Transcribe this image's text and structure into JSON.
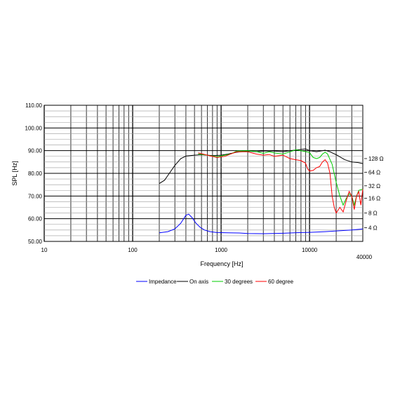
{
  "chart_data": {
    "type": "line",
    "xlabel": "Frequency [Hz]",
    "ylabel": "SPL [Hz]",
    "x_scale": "log",
    "xlim": [
      10,
      40000
    ],
    "ylim": [
      50,
      110
    ],
    "grid": true,
    "legend_position": "bottom",
    "x_tick_labels": [
      "10",
      "100",
      "1000",
      "10000",
      "40000"
    ],
    "x_ticks": [
      10,
      100,
      1000,
      10000,
      40000
    ],
    "y_ticks": [
      50,
      60,
      70,
      80,
      90,
      100,
      110
    ],
    "y_tick_labels": [
      "50.00",
      "60.00",
      "70.00",
      "80.00",
      "90.00",
      "100.00",
      "110.00"
    ],
    "impedance_axis": {
      "labels": [
        "128 Ω",
        "64 Ω",
        "32 Ω",
        "16 Ω",
        "8 Ω",
        "4 Ω"
      ],
      "spl_positions": [
        86.5,
        80.5,
        74.5,
        69.0,
        62.5,
        56.0
      ]
    },
    "series": [
      {
        "name": "Impedance",
        "color": "#0000ff",
        "points": [
          [
            200,
            53.8
          ],
          [
            250,
            54.3
          ],
          [
            300,
            55.5
          ],
          [
            350,
            58.0
          ],
          [
            400,
            61.5
          ],
          [
            430,
            62.0
          ],
          [
            470,
            60.5
          ],
          [
            520,
            58.0
          ],
          [
            580,
            56.2
          ],
          [
            650,
            55.0
          ],
          [
            750,
            54.3
          ],
          [
            900,
            53.9
          ],
          [
            1200,
            53.8
          ],
          [
            1600,
            53.7
          ],
          [
            2000,
            53.5
          ],
          [
            3000,
            53.4
          ],
          [
            5000,
            53.6
          ],
          [
            8000,
            53.9
          ],
          [
            10000,
            54.0
          ],
          [
            15000,
            54.3
          ],
          [
            20000,
            54.6
          ],
          [
            30000,
            55.0
          ],
          [
            40000,
            55.5
          ]
        ]
      },
      {
        "name": "On axis",
        "color": "#000000",
        "points": [
          [
            200,
            75.5
          ],
          [
            230,
            77.0
          ],
          [
            260,
            80.0
          ],
          [
            300,
            83.5
          ],
          [
            350,
            86.5
          ],
          [
            400,
            87.6
          ],
          [
            500,
            88.0
          ],
          [
            600,
            88.2
          ],
          [
            700,
            88.0
          ],
          [
            800,
            87.8
          ],
          [
            1000,
            88.0
          ],
          [
            1200,
            88.5
          ],
          [
            1500,
            89.3
          ],
          [
            2000,
            89.8
          ],
          [
            2500,
            89.5
          ],
          [
            3000,
            89.8
          ],
          [
            4000,
            89.8
          ],
          [
            5000,
            89.5
          ],
          [
            6000,
            90.0
          ],
          [
            7000,
            90.3
          ],
          [
            8000,
            90.5
          ],
          [
            9000,
            90.8
          ],
          [
            10000,
            90.0
          ],
          [
            12000,
            89.5
          ],
          [
            15000,
            90.2
          ],
          [
            17000,
            89.5
          ],
          [
            20000,
            88.2
          ],
          [
            25000,
            86.0
          ],
          [
            30000,
            85.0
          ],
          [
            35000,
            84.8
          ],
          [
            40000,
            84.3
          ]
        ]
      },
      {
        "name": "30 degrees",
        "color": "#00cc00",
        "points": [
          [
            550,
            88.5
          ],
          [
            700,
            88.0
          ],
          [
            900,
            87.3
          ],
          [
            1100,
            88.0
          ],
          [
            1300,
            88.6
          ],
          [
            1500,
            89.8
          ],
          [
            2000,
            90.0
          ],
          [
            2500,
            89.6
          ],
          [
            3000,
            88.8
          ],
          [
            3500,
            89.5
          ],
          [
            4000,
            89.0
          ],
          [
            5000,
            88.5
          ],
          [
            6000,
            89.5
          ],
          [
            7000,
            90.4
          ],
          [
            8000,
            90.0
          ],
          [
            9000,
            89.6
          ],
          [
            10000,
            89.2
          ],
          [
            11000,
            87.0
          ],
          [
            12000,
            86.5
          ],
          [
            13000,
            87.0
          ],
          [
            14000,
            88.5
          ],
          [
            15000,
            89.3
          ],
          [
            16000,
            88.5
          ],
          [
            18000,
            84.0
          ],
          [
            20000,
            76.0
          ],
          [
            22000,
            70.0
          ],
          [
            24000,
            66.0
          ],
          [
            26000,
            69.0
          ],
          [
            28000,
            71.0
          ],
          [
            30000,
            70.0
          ],
          [
            32000,
            66.0
          ],
          [
            34000,
            70.0
          ],
          [
            36000,
            72.5
          ],
          [
            40000,
            73.0
          ]
        ]
      },
      {
        "name": "60 degree",
        "color": "#ff0000",
        "points": [
          [
            550,
            89.0
          ],
          [
            700,
            88.0
          ],
          [
            900,
            87.0
          ],
          [
            1100,
            87.5
          ],
          [
            1300,
            88.6
          ],
          [
            1500,
            89.5
          ],
          [
            2000,
            89.5
          ],
          [
            2500,
            88.5
          ],
          [
            3000,
            88.0
          ],
          [
            3500,
            88.3
          ],
          [
            4000,
            87.5
          ],
          [
            5000,
            88.0
          ],
          [
            6000,
            86.5
          ],
          [
            7000,
            86.0
          ],
          [
            8000,
            85.6
          ],
          [
            9000,
            84.5
          ],
          [
            9500,
            82.0
          ],
          [
            10000,
            81.0
          ],
          [
            11000,
            81.3
          ],
          [
            12000,
            82.5
          ],
          [
            13000,
            83.0
          ],
          [
            14000,
            85.0
          ],
          [
            15000,
            86.0
          ],
          [
            16000,
            84.5
          ],
          [
            17000,
            80.0
          ],
          [
            18000,
            70.0
          ],
          [
            19000,
            65.0
          ],
          [
            20000,
            62.5
          ],
          [
            22000,
            65.0
          ],
          [
            24000,
            63.0
          ],
          [
            26000,
            68.0
          ],
          [
            28000,
            72.0
          ],
          [
            30000,
            70.0
          ],
          [
            32000,
            64.0
          ],
          [
            34000,
            70.0
          ],
          [
            36000,
            72.0
          ],
          [
            38000,
            66.0
          ],
          [
            40000,
            73.0
          ]
        ]
      }
    ]
  }
}
